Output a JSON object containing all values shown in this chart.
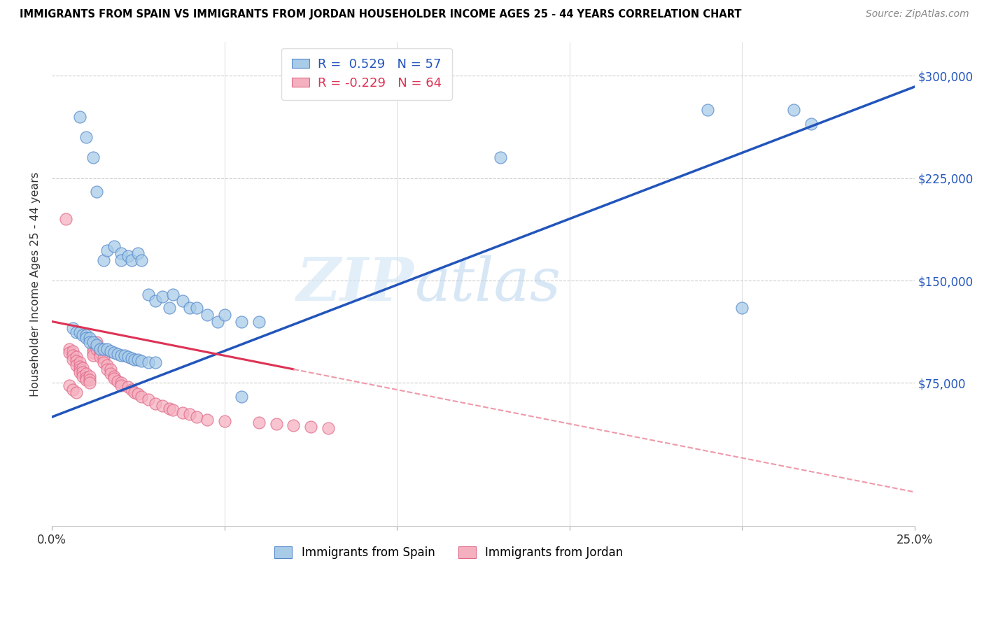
{
  "title": "IMMIGRANTS FROM SPAIN VS IMMIGRANTS FROM JORDAN HOUSEHOLDER INCOME AGES 25 - 44 YEARS CORRELATION CHART",
  "source": "Source: ZipAtlas.com",
  "ylabel": "Householder Income Ages 25 - 44 years",
  "xlim": [
    0.0,
    0.25
  ],
  "ylim": [
    -30000,
    325000
  ],
  "xtick_positions": [
    0.0,
    0.05,
    0.1,
    0.15,
    0.2,
    0.25
  ],
  "xtick_labels": [
    "0.0%",
    "",
    "",
    "",
    "",
    "25.0%"
  ],
  "yticks_right": [
    75000,
    150000,
    225000,
    300000
  ],
  "ytick_labels_right": [
    "$75,000",
    "$150,000",
    "$225,000",
    "$300,000"
  ],
  "watermark": "ZIPatlas",
  "legend_R_spain": "0.529",
  "legend_N_spain": "57",
  "legend_R_jordan": "-0.229",
  "legend_N_jordan": "64",
  "spain_fill": "#a8cce8",
  "spain_edge": "#5588cc",
  "jordan_fill": "#f5b0c0",
  "jordan_edge": "#e06888",
  "spain_line": "#2255bb",
  "jordan_line_solid": "#dd3355",
  "jordan_line_dash": "#ee99aa",
  "spain_x": [
    0.008,
    0.01,
    0.012,
    0.013,
    0.015,
    0.016,
    0.018,
    0.02,
    0.02,
    0.022,
    0.023,
    0.025,
    0.026,
    0.028,
    0.03,
    0.032,
    0.034,
    0.035,
    0.038,
    0.04,
    0.042,
    0.045,
    0.048,
    0.05,
    0.055,
    0.06,
    0.006,
    0.007,
    0.008,
    0.009,
    0.01,
    0.01,
    0.011,
    0.011,
    0.012,
    0.013,
    0.014,
    0.015,
    0.016,
    0.017,
    0.018,
    0.019,
    0.02,
    0.021,
    0.022,
    0.023,
    0.024,
    0.025,
    0.026,
    0.028,
    0.03,
    0.13,
    0.19,
    0.2,
    0.215,
    0.22,
    0.055
  ],
  "spain_y": [
    270000,
    255000,
    240000,
    215000,
    165000,
    172000,
    175000,
    170000,
    165000,
    168000,
    165000,
    170000,
    165000,
    140000,
    135000,
    138000,
    130000,
    140000,
    135000,
    130000,
    130000,
    125000,
    120000,
    125000,
    120000,
    120000,
    115000,
    112000,
    112000,
    110000,
    110000,
    108000,
    108000,
    105000,
    105000,
    103000,
    100000,
    100000,
    100000,
    98000,
    97000,
    96000,
    95000,
    95000,
    94000,
    93000,
    92000,
    92000,
    91000,
    90000,
    90000,
    240000,
    275000,
    130000,
    275000,
    265000,
    65000
  ],
  "jordan_x": [
    0.004,
    0.005,
    0.005,
    0.006,
    0.006,
    0.006,
    0.007,
    0.007,
    0.007,
    0.008,
    0.008,
    0.008,
    0.008,
    0.009,
    0.009,
    0.009,
    0.01,
    0.01,
    0.01,
    0.011,
    0.011,
    0.011,
    0.012,
    0.012,
    0.012,
    0.013,
    0.013,
    0.013,
    0.014,
    0.014,
    0.015,
    0.015,
    0.016,
    0.016,
    0.017,
    0.017,
    0.018,
    0.018,
    0.019,
    0.02,
    0.02,
    0.022,
    0.023,
    0.024,
    0.025,
    0.026,
    0.028,
    0.03,
    0.032,
    0.034,
    0.035,
    0.038,
    0.04,
    0.042,
    0.045,
    0.05,
    0.06,
    0.065,
    0.07,
    0.075,
    0.08,
    0.005,
    0.006,
    0.007
  ],
  "jordan_y": [
    195000,
    100000,
    97000,
    98000,
    95000,
    92000,
    94000,
    91000,
    88000,
    90000,
    87000,
    85000,
    83000,
    86000,
    83000,
    80000,
    82000,
    79000,
    77000,
    80000,
    77000,
    75000,
    100000,
    97000,
    95000,
    105000,
    102000,
    100000,
    97000,
    94000,
    93000,
    90000,
    88000,
    85000,
    85000,
    82000,
    80000,
    78000,
    76000,
    75000,
    73000,
    72000,
    70000,
    68000,
    67000,
    65000,
    63000,
    60000,
    58000,
    56000,
    55000,
    53000,
    52000,
    50000,
    48000,
    47000,
    46000,
    45000,
    44000,
    43000,
    42000,
    73000,
    70000,
    68000
  ]
}
